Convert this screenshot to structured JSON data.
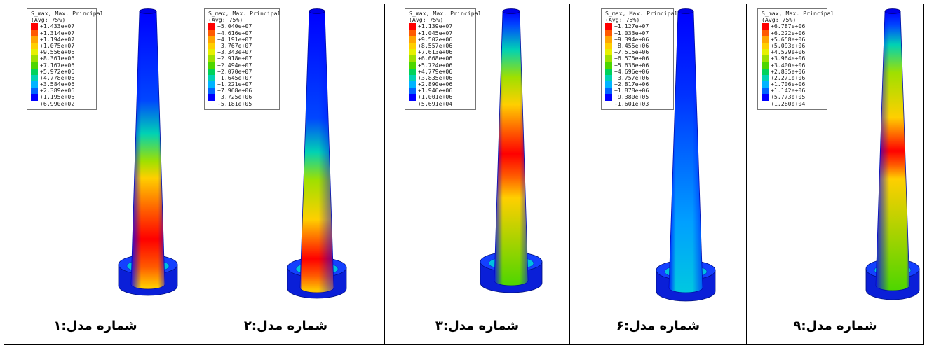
{
  "colormap": [
    "#ff0000",
    "#ff5a00",
    "#ffa500",
    "#ffcf00",
    "#e6f000",
    "#9fe000",
    "#4dd600",
    "#00d25a",
    "#00d2b4",
    "#00b4ff",
    "#0064ff",
    "#0000ff"
  ],
  "panels": [
    {
      "legend_title": "S_max, Max. Principal",
      "legend_avg": "(Avg: 75%)",
      "legend_values": [
        "+1.433e+07",
        "+1.314e+07",
        "+1.194e+07",
        "+1.075e+07",
        "+9.556e+06",
        "+8.361e+06",
        "+7.167e+06",
        "+5.972e+06",
        "+4.778e+06",
        "+3.584e+06",
        "+2.389e+06",
        "+1.195e+06",
        "+6.990e+02"
      ],
      "caption": "شماره مدل:۱"
    },
    {
      "legend_title": "S_max, Max. Principal",
      "legend_avg": "(Avg: 75%)",
      "legend_values": [
        "+5.040e+07",
        "+4.616e+07",
        "+4.191e+07",
        "+3.767e+07",
        "+3.343e+07",
        "+2.918e+07",
        "+2.494e+07",
        "+2.070e+07",
        "+1.645e+07",
        "+1.221e+07",
        "+7.968e+06",
        "+3.725e+06",
        "-5.181e+05"
      ],
      "caption": "شماره مدل:۲"
    },
    {
      "legend_title": "S_max, Max. Principal",
      "legend_avg": "(Avg: 75%)",
      "legend_values": [
        "+1.139e+07",
        "+1.045e+07",
        "+9.502e+06",
        "+8.557e+06",
        "+7.613e+06",
        "+6.668e+06",
        "+5.724e+06",
        "+4.779e+06",
        "+3.835e+06",
        "+2.890e+06",
        "+1.946e+06",
        "+1.001e+06",
        "+5.691e+04"
      ],
      "caption": "شماره مدل:۳"
    },
    {
      "legend_title": "S_max, Max. Principal",
      "legend_avg": "(Avg: 75%)",
      "legend_values": [
        "+1.127e+07",
        "+1.033e+07",
        "+9.394e+06",
        "+8.455e+06",
        "+7.515e+06",
        "+6.575e+06",
        "+5.636e+06",
        "+4.696e+06",
        "+3.757e+06",
        "+2.817e+06",
        "+1.878e+06",
        "+9.380e+05",
        "-1.601e+03"
      ],
      "caption": "شماره مدل:۶"
    },
    {
      "legend_title": "S_max, Max. Principal",
      "legend_avg": "(Avg: 75%)",
      "legend_values": [
        "+6.787e+06",
        "+6.222e+06",
        "+5.658e+06",
        "+5.093e+06",
        "+4.529e+06",
        "+3.964e+06",
        "+3.400e+06",
        "+2.835e+06",
        "+2.271e+06",
        "+1.706e+06",
        "+1.142e+06",
        "+5.773e+05",
        "+1.280e+04"
      ],
      "caption": "شماره مدل:۹"
    }
  ]
}
